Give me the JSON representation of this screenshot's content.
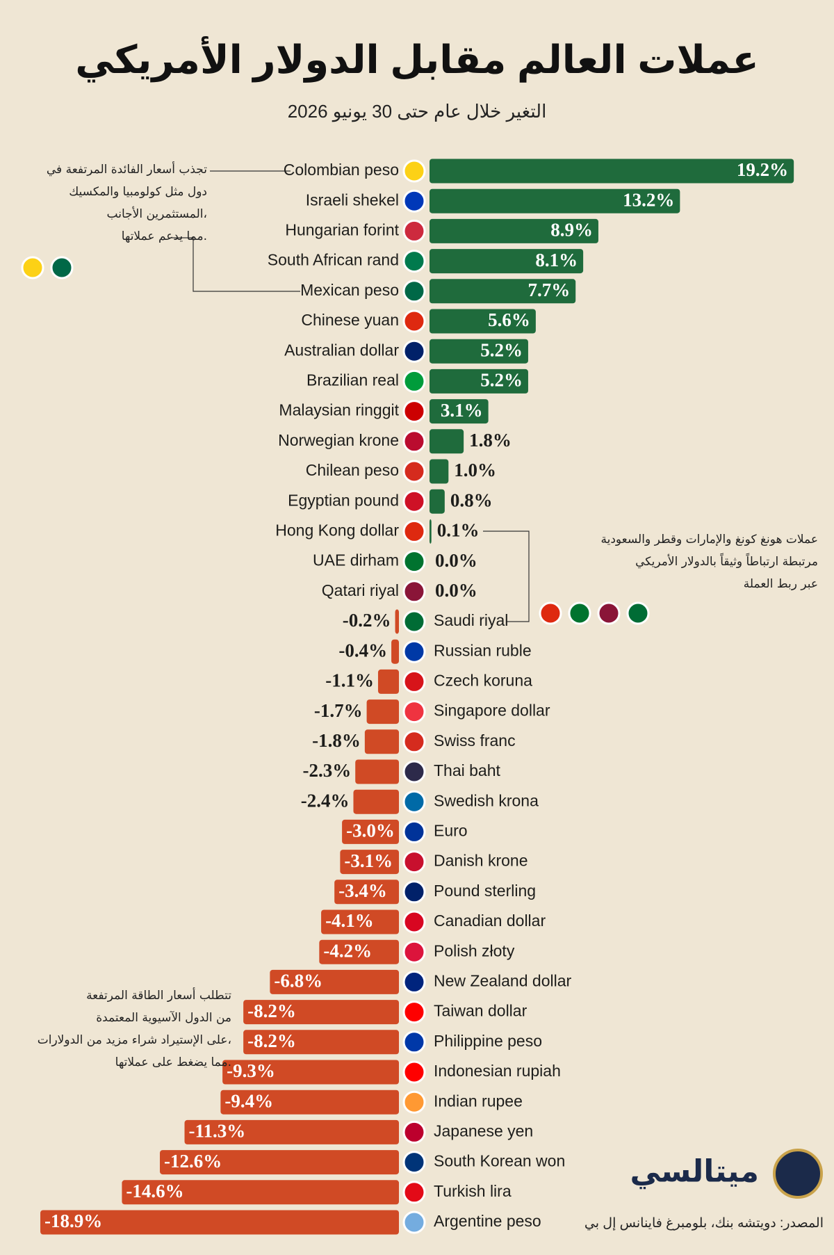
{
  "chart_data": {
    "type": "diverging-bar",
    "title": "عملات العالم مقابل الدولار الأمريكي",
    "subtitle": "التغير خلال عام حتى 30 يونيو 2026",
    "categories": [
      "Colombian peso",
      "Israeli shekel",
      "Hungarian forint",
      "South African rand",
      "Mexican peso",
      "Chinese yuan",
      "Australian dollar",
      "Brazilian real",
      "Malaysian ringgit",
      "Norwegian krone",
      "Chilean peso",
      "Egyptian pound",
      "Hong Kong dollar",
      "UAE dirham",
      "Qatari riyal",
      "Saudi riyal",
      "Russian ruble",
      "Czech koruna",
      "Singapore dollar",
      "Swiss franc",
      "Thai baht",
      "Swedish krona",
      "Euro",
      "Danish krone",
      "Pound sterling",
      "Canadian dollar",
      "Polish złoty",
      "New Zealand dollar",
      "Taiwan dollar",
      "Philippine peso",
      "Indonesian rupiah",
      "Indian rupee",
      "Japanese yen",
      "South Korean won",
      "Turkish lira",
      "Argentine peso"
    ],
    "values": [
      19.2,
      13.2,
      8.9,
      8.1,
      7.7,
      5.6,
      5.2,
      5.2,
      3.1,
      1.8,
      1.0,
      0.8,
      0.1,
      0,
      0,
      -0.2,
      -0.4,
      -1.1,
      -1.7,
      -1.8,
      -2.3,
      -2.4,
      -3.0,
      -3.1,
      -3.4,
      -4.1,
      -4.2,
      -6.8,
      -8.2,
      -8.2,
      -9.3,
      -9.4,
      -11.3,
      -12.6,
      -14.6,
      -18.9
    ],
    "value_labels": [
      "19.2%",
      "13.2%",
      "8.9%",
      "8.1%",
      "7.7%",
      "5.6%",
      "5.2%",
      "5.2%",
      "3.1%",
      "1.8%",
      "1.0%",
      "0.8%",
      "0.1%",
      "0.0%",
      "0.0%",
      "-0.2%",
      "-0.4%",
      "-1.1%",
      "-1.7%",
      "-1.8%",
      "-2.3%",
      "-2.4%",
      "-3.0%",
      "-3.1%",
      "-3.4%",
      "-4.1%",
      "-4.2%",
      "-6.8%",
      "-8.2%",
      "-8.2%",
      "-9.3%",
      "-9.4%",
      "-11.3%",
      "-12.6%",
      "-14.6%",
      "-18.9%"
    ],
    "positive_color": "#1f6b3c",
    "negative_color": "#d04a25",
    "annotations": [
      {
        "lines": [
          "تجذب أسعار الفائدة المرتفعة في",
          "دول مثل كولومبيا والمكسيك",
          "المستثمرين الأجانب،",
          "مما يدعم عملاتها."
        ]
      },
      {
        "lines": [
          "عملات هونغ كونغ والإمارات وقطر والسعودية",
          "مرتبطة ارتباطاً وثيقاً بالدولار الأمريكي",
          "عبر ربط العملة"
        ]
      },
      {
        "lines": [
          "تتطلب أسعار الطاقة المرتفعة",
          "من الدول الآسيوية المعتمدة",
          "على الإستيراد شراء مزيد من الدولارات،",
          "مما يضغط على عملاتها."
        ]
      }
    ],
    "brand": "ميتالسي",
    "source": "المصدر: دويتشه بنك، بلومبرغ فاينانس إل بي"
  }
}
